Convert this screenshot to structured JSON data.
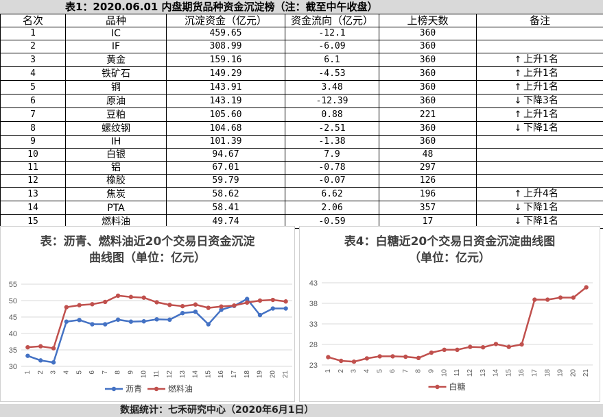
{
  "table": {
    "title": "表1：2020.06.01 内盘期货品种资金沉淀榜（注：截至中午收盘）",
    "headers": [
      "名次",
      "品种",
      "沉淀资金（亿元）",
      "资金流向（亿元）",
      "上榜天数",
      "备注"
    ],
    "rows": [
      {
        "rank": "1",
        "name": "IC",
        "fund": "459.65",
        "flow": "-12.1",
        "days": "360",
        "note": "",
        "dir": ""
      },
      {
        "rank": "2",
        "name": "IF",
        "fund": "308.99",
        "flow": "-6.09",
        "days": "360",
        "note": "",
        "dir": ""
      },
      {
        "rank": "3",
        "name": "黄金",
        "fund": "159.16",
        "flow": "6.1",
        "days": "360",
        "note": "上升1名",
        "dir": "up"
      },
      {
        "rank": "4",
        "name": "铁矿石",
        "fund": "149.29",
        "flow": "-4.53",
        "days": "360",
        "note": "上升1名",
        "dir": "up"
      },
      {
        "rank": "5",
        "name": "铜",
        "fund": "143.91",
        "flow": "3.48",
        "days": "360",
        "note": "上升1名",
        "dir": "up"
      },
      {
        "rank": "6",
        "name": "原油",
        "fund": "143.19",
        "flow": "-12.39",
        "days": "360",
        "note": "下降3名",
        "dir": "down"
      },
      {
        "rank": "7",
        "name": "豆粕",
        "fund": "105.60",
        "flow": "0.88",
        "days": "221",
        "note": "上升1名",
        "dir": "up"
      },
      {
        "rank": "8",
        "name": "螺纹钢",
        "fund": "104.68",
        "flow": "-2.51",
        "days": "360",
        "note": "下降1名",
        "dir": "down"
      },
      {
        "rank": "9",
        "name": "IH",
        "fund": "101.39",
        "flow": "-1.38",
        "days": "360",
        "note": "",
        "dir": ""
      },
      {
        "rank": "10",
        "name": "白银",
        "fund": "94.67",
        "flow": "7.9",
        "days": "48",
        "note": "",
        "dir": ""
      },
      {
        "rank": "11",
        "name": "铝",
        "fund": "67.01",
        "flow": "-0.78",
        "days": "297",
        "note": "",
        "dir": ""
      },
      {
        "rank": "12",
        "name": "橡胶",
        "fund": "59.79",
        "flow": "-0.07",
        "days": "126",
        "note": "",
        "dir": ""
      },
      {
        "rank": "13",
        "name": "焦炭",
        "fund": "58.62",
        "flow": "6.62",
        "days": "196",
        "note": "上升4名",
        "dir": "up"
      },
      {
        "rank": "14",
        "name": "PTA",
        "fund": "58.41",
        "flow": "2.06",
        "days": "357",
        "note": "下降1名",
        "dir": "down"
      },
      {
        "rank": "15",
        "name": "燃料油",
        "fund": "49.74",
        "flow": "-0.59",
        "days": "17",
        "note": "下降1名",
        "dir": "down"
      }
    ]
  },
  "chart_data": [
    {
      "type": "line",
      "title": "表：沥青、燃料油近20个交易日资金沉淀曲线图（单位：亿元）",
      "title_lines": [
        "表：沥青、燃料油近20个交易日资金沉淀",
        "曲线图（单位：亿元）"
      ],
      "x": [
        "1",
        "2",
        "3",
        "4",
        "5",
        "6",
        "7",
        "8",
        "9",
        "10",
        "11",
        "12",
        "13",
        "14",
        "15",
        "16",
        "17",
        "18",
        "19",
        "20",
        "21"
      ],
      "ylim": [
        30,
        55
      ],
      "yticks": [
        "30",
        "35",
        "40",
        "45",
        "50",
        "55"
      ],
      "grid": true,
      "legend": "bottom",
      "series": [
        {
          "name": "沥青",
          "color": "#4472c4",
          "values": [
            33.2,
            31.8,
            31.2,
            43.6,
            44.1,
            42.8,
            42.8,
            44.2,
            43.6,
            43.7,
            44.3,
            44.2,
            46.2,
            46.6,
            42.8,
            47.2,
            48.4,
            50.5,
            45.6,
            47.6,
            47.6
          ]
        },
        {
          "name": "燃料油",
          "color": "#c0504d",
          "values": [
            35.8,
            36.1,
            35.5,
            48.0,
            48.6,
            48.9,
            49.6,
            51.5,
            51.1,
            50.9,
            49.5,
            48.7,
            48.3,
            48.8,
            47.8,
            48.2,
            48.5,
            49.4,
            50.0,
            50.2,
            49.74
          ]
        }
      ]
    },
    {
      "type": "line",
      "title": "表4：白糖近20个交易日资金沉淀曲线图（单位：亿元）",
      "title_lines": [
        "表4：白糖近20个交易日资金沉淀曲线图",
        "（单位：亿元）"
      ],
      "x": [
        "1",
        "2",
        "3",
        "4",
        "5",
        "6",
        "7",
        "8",
        "9",
        "10",
        "11",
        "12",
        "13",
        "14",
        "15",
        "16",
        "17",
        "18",
        "19",
        "20",
        "21"
      ],
      "ylim": [
        23,
        43
      ],
      "yticks": [
        "23",
        "28",
        "33",
        "38",
        "43"
      ],
      "grid": true,
      "legend": "bottom",
      "series": [
        {
          "name": "白糖",
          "color": "#c0504d",
          "values": [
            24.9,
            24.0,
            23.8,
            24.6,
            25.1,
            25.1,
            25.0,
            24.7,
            26.0,
            26.7,
            26.7,
            27.4,
            27.3,
            28.1,
            27.4,
            28.0,
            38.9,
            38.9,
            39.4,
            39.4,
            41.9
          ]
        }
      ]
    }
  ],
  "footer": "数据统计：七禾研究中心（2020年6月1日）"
}
